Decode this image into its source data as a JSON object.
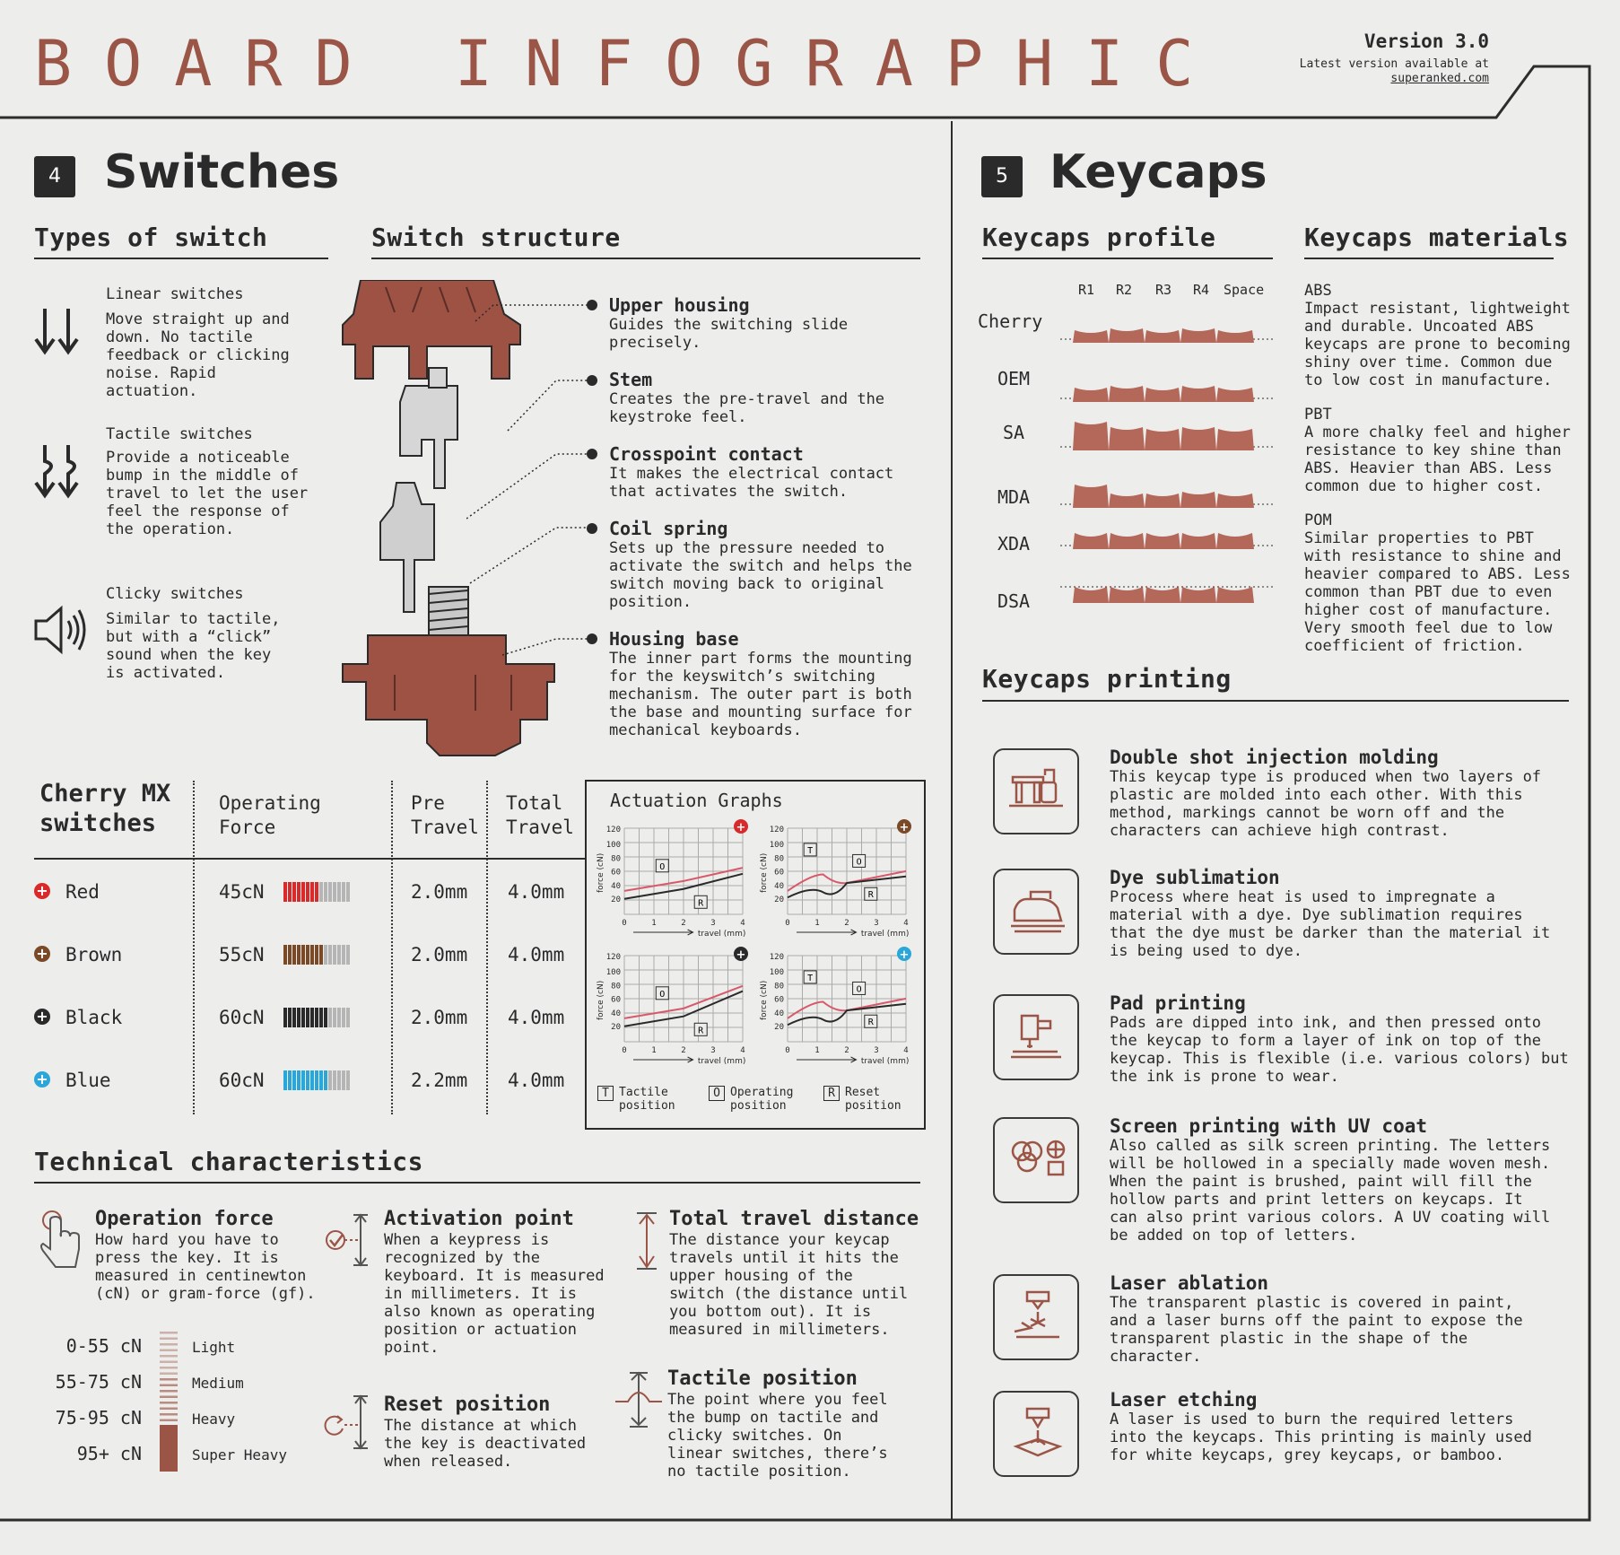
{
  "header": {
    "title": "BOARD INFOGRAPHIC",
    "version": "Version 3.0",
    "latest": "Latest version available at",
    "link": "superanked.com"
  },
  "switches": {
    "num": "4",
    "title": "Switches",
    "types_heading": "Types of switch",
    "structure_heading": "Switch structure",
    "types": [
      {
        "name": "Linear switches",
        "desc": [
          "Move straight up and",
          "down. No tactile",
          "feedback or clicking",
          "noise. Rapid",
          "actuation."
        ],
        "icon": "double-down-arrow-icon"
      },
      {
        "name": "Tactile switches",
        "desc": [
          "Provide a noticeable",
          "bump in the middle of",
          "travel to let the user",
          "feel the response of",
          "the operation."
        ],
        "icon": "bump-arrow-icon"
      },
      {
        "name": "Clicky switches",
        "desc": [
          "Similar to tactile,",
          "but with a “click”",
          "sound when the key",
          "is activated."
        ],
        "icon": "speaker-icon"
      }
    ],
    "parts": [
      {
        "name": "Upper housing",
        "desc": [
          "Guides the switching slide",
          "precisely."
        ]
      },
      {
        "name": "Stem",
        "desc": [
          "Creates the pre-travel and the",
          "keystroke feel."
        ]
      },
      {
        "name": "Crosspoint contact",
        "desc": [
          "It makes the electrical contact",
          "that activates the switch."
        ]
      },
      {
        "name": "Coil spring",
        "desc": [
          "Sets up the pressure needed to",
          "activate the switch and helps the",
          "switch moving back to original",
          "position."
        ]
      },
      {
        "name": "Housing base",
        "desc": [
          "The inner part forms the mounting",
          "for the keyswitch’s switching",
          "mechanism. The outer part is both",
          "the base and mounting surface for",
          "mechanical keyboards."
        ]
      }
    ]
  },
  "table": {
    "col1": [
      "Cherry MX",
      "switches"
    ],
    "col2": [
      "Operating",
      "Force"
    ],
    "col3": [
      "Pre",
      "Travel"
    ],
    "col4": [
      "Total",
      "Travel"
    ],
    "rows": [
      {
        "name": "Red",
        "force": "45cN",
        "pre": "2.0mm",
        "total": "4.0mm",
        "color": "#d82a2a",
        "level": 0.5
      },
      {
        "name": "Brown",
        "force": "55cN",
        "pre": "2.0mm",
        "total": "4.0mm",
        "color": "#7a4a28",
        "level": 0.6
      },
      {
        "name": "Black",
        "force": "60cN",
        "pre": "2.0mm",
        "total": "4.0mm",
        "color": "#2a2a2a",
        "level": 0.67
      },
      {
        "name": "Blue",
        "force": "60cN",
        "pre": "2.2mm",
        "total": "4.0mm",
        "color": "#2aa6d8",
        "level": 0.67
      }
    ]
  },
  "graphs": {
    "title": "Actuation Graphs",
    "yticks": [
      "120",
      "100",
      "80",
      "60",
      "40",
      "20"
    ],
    "xticks": [
      "0",
      "1",
      "2",
      "3",
      "4"
    ],
    "ylabel": "force (cN)",
    "xlabel": "travel (mm)",
    "legend": [
      {
        "key": "T",
        "label": [
          "Tactile",
          "position"
        ]
      },
      {
        "key": "O",
        "label": [
          "Operating",
          "position"
        ]
      },
      {
        "key": "R",
        "label": [
          "Reset",
          "position"
        ]
      }
    ]
  },
  "tech": {
    "heading": "Technical characteristics",
    "items": [
      {
        "name": "Operation force",
        "desc": [
          "How hard you have to",
          "press the key. It is",
          "measured in centinewton",
          "(cN) or gram-force (gf)."
        ]
      },
      {
        "name": "Activation point",
        "desc": [
          "When a keypress is",
          "recognized by the",
          "keyboard. It is measured",
          "in millimeters. It is",
          "also known as operating",
          "position or actuation",
          "point."
        ]
      },
      {
        "name": "Total travel distance",
        "desc": [
          "The distance your keycap",
          "travels until it hits the",
          "upper housing of the",
          "switch (the distance until",
          "you bottom out). It is",
          "measured in millimeters."
        ]
      },
      {
        "name": "Reset position",
        "desc": [
          "The distance at which",
          "the key is deactivated",
          "when released."
        ]
      },
      {
        "name": "Tactile position",
        "desc": [
          "The point where you feel",
          "the bump on tactile and",
          "clicky switches. On",
          "linear switches, there’s",
          "no tactile position."
        ]
      }
    ],
    "scale": [
      {
        "range": "0-55 cN",
        "label": "Light"
      },
      {
        "range": "55-75 cN",
        "label": "Medium"
      },
      {
        "range": "75-95 cN",
        "label": "Heavy"
      },
      {
        "range": "95+ cN",
        "label": "Super Heavy"
      }
    ]
  },
  "keycaps": {
    "num": "5",
    "title": "Keycaps",
    "profile_heading": "Keycaps profile",
    "materials_heading": "Keycaps materials",
    "printing_heading": "Keycaps printing",
    "rows_header": [
      "R1",
      "R2",
      "R3",
      "R4",
      "Space"
    ],
    "profiles": [
      "Cherry",
      "OEM",
      "SA",
      "MDA",
      "XDA",
      "DSA"
    ],
    "materials": [
      {
        "name": "ABS",
        "desc": [
          "Impact resistant, lightweight",
          "and durable. Uncoated ABS",
          "keycaps are prone to becoming",
          "shiny over time. Common due",
          "to low cost in manufacture."
        ]
      },
      {
        "name": "PBT",
        "desc": [
          "A more chalky feel and higher",
          "resistance to key shine than",
          "ABS. Heavier than ABS. Less",
          "common due to higher cost."
        ]
      },
      {
        "name": "POM",
        "desc": [
          "Similar properties to PBT",
          "with resistance to shine and",
          "heavier compared to ABS. Less",
          "common than PBT due to even",
          "higher cost of manufacture.",
          "Very smooth feel due to low",
          "coefficient of friction."
        ]
      }
    ],
    "printing": [
      {
        "name": "Double shot injection molding",
        "desc": [
          "This keycap type is produced when two layers of",
          "plastic are molded into each other. With this",
          "method, markings cannot be worn off and the",
          "characters can achieve high contrast."
        ],
        "icon": "injection-mold-icon"
      },
      {
        "name": "Dye sublimation",
        "desc": [
          "Process where heat is used to impregnate a",
          "material with a dye.  Dye sublimation requires",
          "that the dye must be darker than the material it",
          "is being used to dye."
        ],
        "icon": "iron-icon"
      },
      {
        "name": "Pad printing",
        "desc": [
          "Pads are dipped into ink, and then pressed onto",
          "the keycap to form a layer of ink on top of the",
          "keycap. This is flexible (i.e. various colors) but",
          "the ink is prone to wear."
        ],
        "icon": "pad-printer-icon"
      },
      {
        "name": "Screen printing with UV coat",
        "desc": [
          "Also called as silk screen printing. The letters",
          "will be hollowed in a specially made woven mesh.",
          "When the paint is brushed, paint will fill the",
          "hollow parts and print letters on keycaps. It",
          "can also print various colors. A UV coating will",
          "be added on top of letters."
        ],
        "icon": "screen-print-icon"
      },
      {
        "name": "Laser ablation",
        "desc": [
          "The transparent plastic is covered in paint,",
          "and a laser burns off the paint to expose the",
          "transparent plastic in the shape of the",
          "character."
        ],
        "icon": "laser-ablation-icon"
      },
      {
        "name": "Laser etching",
        "desc": [
          "A laser is used to burn the required letters",
          "into the keycaps. This printing is mainly used",
          "for white keycaps, grey keycaps, or bamboo."
        ],
        "icon": "laser-etching-icon"
      }
    ]
  },
  "colors": {
    "accent": "#9a5546",
    "keycap": "#b4685a",
    "dark": "#2a2a2a"
  }
}
